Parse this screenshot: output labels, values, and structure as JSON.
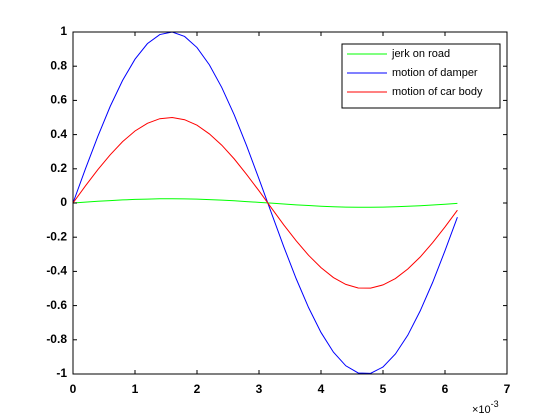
{
  "chart_data": {
    "type": "line",
    "x": [
      0,
      0.2,
      0.4,
      0.6,
      0.8,
      1.0,
      1.2,
      1.4,
      1.6,
      1.8,
      2.0,
      2.2,
      2.4,
      2.6,
      2.8,
      3.0,
      3.2,
      3.4,
      3.6,
      3.8,
      4.0,
      4.2,
      4.4,
      4.6,
      4.8,
      5.0,
      5.2,
      5.4,
      5.6,
      5.8,
      6.0,
      6.2
    ],
    "series": [
      {
        "name": "jerk on road",
        "color": "#00ff00",
        "values": [
          0,
          0.005,
          0.01,
          0.014,
          0.018,
          0.021,
          0.023,
          0.025,
          0.025,
          0.024,
          0.023,
          0.02,
          0.017,
          0.013,
          0.008,
          0.004,
          -0.001,
          -0.006,
          -0.011,
          -0.015,
          -0.019,
          -0.022,
          -0.024,
          -0.025,
          -0.025,
          -0.024,
          -0.022,
          -0.019,
          -0.016,
          -0.012,
          -0.007,
          -0.002
        ]
      },
      {
        "name": "motion of damper",
        "color": "#0000ff",
        "values": [
          0,
          0.199,
          0.389,
          0.565,
          0.717,
          0.841,
          0.932,
          0.985,
          1.0,
          0.974,
          0.909,
          0.808,
          0.675,
          0.516,
          0.335,
          0.141,
          -0.058,
          -0.256,
          -0.443,
          -0.612,
          -0.757,
          -0.872,
          -0.952,
          -0.994,
          -0.996,
          -0.959,
          -0.883,
          -0.773,
          -0.631,
          -0.465,
          -0.279,
          -0.083
        ]
      },
      {
        "name": "motion of car body",
        "color": "#ff0000",
        "values": [
          0,
          0.1,
          0.195,
          0.282,
          0.359,
          0.421,
          0.466,
          0.493,
          0.5,
          0.487,
          0.455,
          0.404,
          0.338,
          0.258,
          0.167,
          0.071,
          -0.029,
          -0.128,
          -0.221,
          -0.306,
          -0.378,
          -0.436,
          -0.476,
          -0.497,
          -0.498,
          -0.479,
          -0.442,
          -0.386,
          -0.316,
          -0.232,
          -0.14,
          -0.042
        ]
      }
    ],
    "xlim": [
      0,
      7
    ],
    "xticks": [
      0,
      1,
      2,
      3,
      4,
      5,
      6,
      7
    ],
    "ylim": [
      -1,
      1
    ],
    "yticks": [
      -1,
      -0.8,
      -0.6,
      -0.4,
      -0.2,
      0,
      0.2,
      0.4,
      0.6,
      0.8,
      1
    ],
    "x_multiplier": "×10",
    "x_exponent": "-3",
    "legend": "upper right",
    "grid": false
  }
}
